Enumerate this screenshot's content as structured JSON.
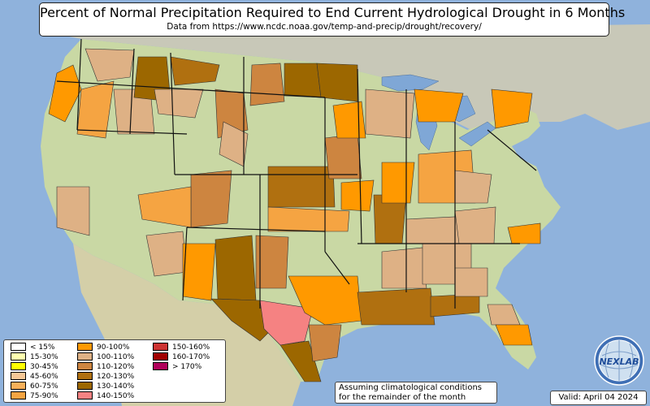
{
  "title": "Percent of Normal Precipitation Required to End Current Hydrological Drought in 6 Months",
  "subtitle": "Data from https://www.ncdc.noaa.gov/temp-and-precip/drought/recovery/",
  "legend": {
    "items": [
      {
        "label": "< 15%",
        "color": "#ffffff"
      },
      {
        "label": "15-30%",
        "color": "#ffffb0"
      },
      {
        "label": "30-45%",
        "color": "#ffff00"
      },
      {
        "label": "45-60%",
        "color": "#f7c896"
      },
      {
        "label": "60-75%",
        "color": "#f7b05a"
      },
      {
        "label": "75-90%",
        "color": "#f5a442"
      },
      {
        "label": "90-100%",
        "color": "#ff9900"
      },
      {
        "label": "100-110%",
        "color": "#deb185"
      },
      {
        "label": "110-120%",
        "color": "#cd8540"
      },
      {
        "label": "120-130%",
        "color": "#b07010"
      },
      {
        "label": "130-140%",
        "color": "#9c6700"
      },
      {
        "label": "140-150%",
        "color": "#f58282"
      },
      {
        "label": "150-160%",
        "color": "#cc3333"
      },
      {
        "label": "160-170%",
        "color": "#a00000"
      },
      {
        "label": "> 170%",
        "color": "#b0005a"
      }
    ]
  },
  "note": {
    "line1": "Assuming climatological conditions",
    "line2": "for the remainder of the month"
  },
  "valid": "Valid: April 04 2024",
  "logo_text": "NEXLAB",
  "colors": {
    "ocean": "#8fb2dc",
    "land": "#c9d8a4",
    "lakes": "#7fa7d6"
  }
}
